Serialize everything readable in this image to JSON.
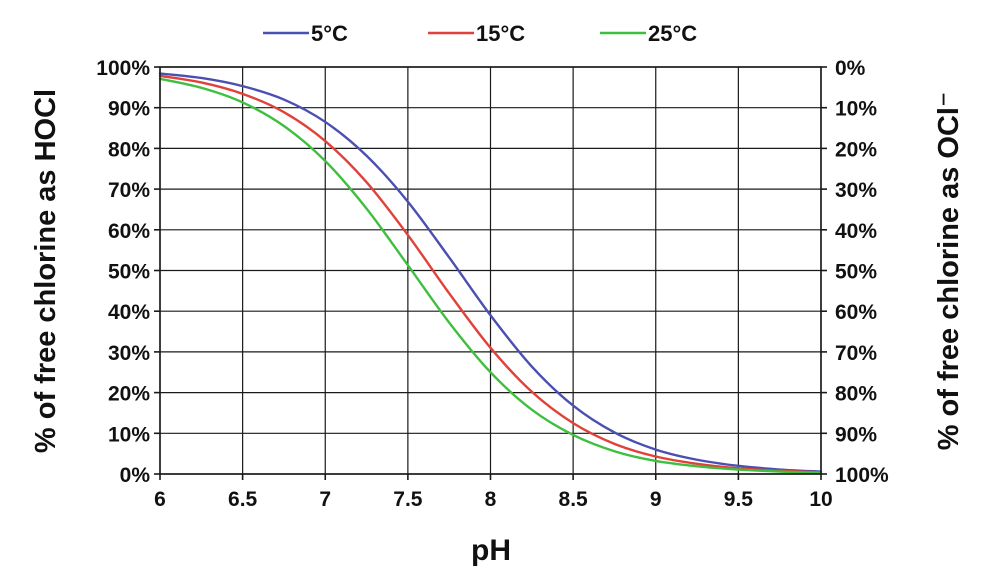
{
  "chart_data": {
    "type": "line",
    "title": "",
    "xlabel": "pH",
    "ylabel": "% of free chlorine as HOCl",
    "y2label": "% of free chlorine as OCl⁻",
    "xlim": [
      6,
      10
    ],
    "ylim": [
      0,
      100
    ],
    "y2lim": [
      100,
      0
    ],
    "grid": true,
    "legend_position": "top-center",
    "x_ticks": [
      "6",
      "6.5",
      "7",
      "7.5",
      "8",
      "8.5",
      "9",
      "9.5",
      "10"
    ],
    "y_ticks": [
      "0%",
      "10%",
      "20%",
      "30%",
      "40%",
      "50%",
      "60%",
      "70%",
      "80%",
      "90%",
      "100%"
    ],
    "y2_ticks": [
      "100%",
      "90%",
      "80%",
      "70%",
      "60%",
      "50%",
      "40%",
      "30%",
      "20%",
      "10%",
      "0%"
    ],
    "x": [
      6.0,
      6.25,
      6.5,
      6.75,
      7.0,
      7.25,
      7.5,
      7.75,
      8.0,
      8.25,
      8.5,
      8.75,
      9.0,
      9.25,
      9.5,
      9.75,
      10.0
    ],
    "series": [
      {
        "name": "5°C",
        "color": "#4a4fb2",
        "values": [
          98.4,
          97.3,
          95.3,
          92.0,
          86.5,
          78.2,
          66.9,
          53.2,
          39.0,
          26.4,
          16.8,
          10.2,
          6.0,
          3.5,
          2.0,
          1.1,
          0.6
        ]
      },
      {
        "name": "15°C",
        "color": "#e0413a",
        "values": [
          97.8,
          96.2,
          93.4,
          88.9,
          81.8,
          71.7,
          58.7,
          44.4,
          31.0,
          20.2,
          12.5,
          7.4,
          4.3,
          2.5,
          1.4,
          0.8,
          0.4
        ]
      },
      {
        "name": "25°C",
        "color": "#3fbf3f",
        "values": [
          97.1,
          94.9,
          91.3,
          85.5,
          76.9,
          65.2,
          51.3,
          37.2,
          25.0,
          15.8,
          9.6,
          5.6,
          3.2,
          1.9,
          1.1,
          0.6,
          0.3
        ]
      }
    ]
  }
}
